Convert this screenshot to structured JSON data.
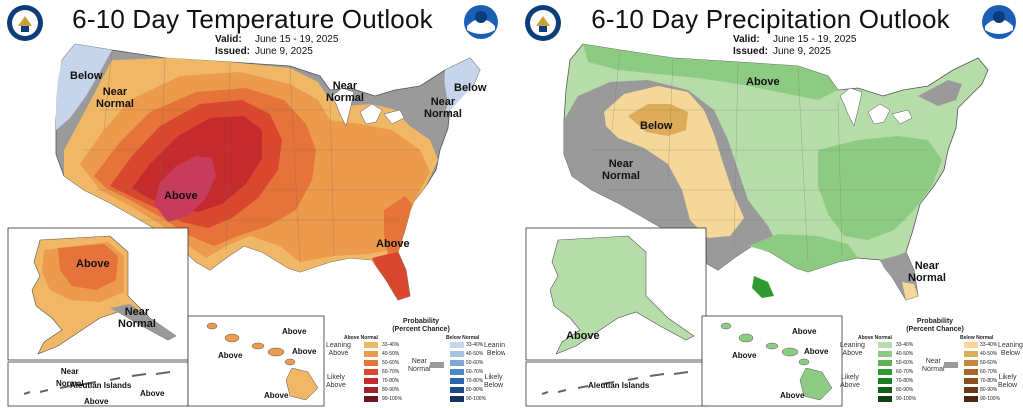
{
  "temperature": {
    "title": "6-10 Day Temperature Outlook",
    "valid_label": "Valid:",
    "valid_value": "June 15 - 19, 2025",
    "issued_label": "Issued:",
    "issued_value": "June 9, 2025",
    "labels": {
      "below_nw": "Below",
      "near_normal_nw": "Near\nNormal",
      "above_sw": "Above",
      "near_normal_gl": "Near\nNormal",
      "below_ne": "Below",
      "near_normal_ne": "Near\nNormal",
      "above_se": "Above",
      "alaska_above": "Above",
      "alaska_near": "Near\nNormal",
      "aleutian": "Aleutian Islands",
      "aleutian_near": "Near\nNormal",
      "aleutian_above_1": "Above",
      "aleutian_above_2": "Above",
      "hawaii_above_1": "Above",
      "hawaii_above_2": "Above",
      "hawaii_above_3": "Above",
      "hawaii_above_4": "Above"
    },
    "colors": {
      "a33": "#f0b766",
      "a40": "#ec9a4b",
      "a50": "#e6733a",
      "a60": "#d9482e",
      "a70": "#c52a2d",
      "a80": "#c73b5b",
      "near": "#9a9a9a",
      "b33": "#c6d4ec",
      "b40": "#a5c1e3"
    }
  },
  "precipitation": {
    "title": "6-10 Day Precipitation Outlook",
    "valid_label": "Valid:",
    "valid_value": "June 15 - 19, 2025",
    "issued_label": "Issued:",
    "issued_value": "June 9, 2025",
    "labels": {
      "above_north": "Above",
      "below_west": "Below",
      "near_normal_west": "Near\nNormal",
      "near_normal_fl": "Near\nNormal",
      "alaska_above": "Above",
      "aleutian": "Aleutian Islands",
      "hawaii_above_1": "Above",
      "hawaii_above_2": "Above",
      "hawaii_above_3": "Above",
      "hawaii_above_4": "Above"
    },
    "colors": {
      "a33": "#b6dca9",
      "a40": "#8ecb82",
      "a50": "#5db351",
      "a60": "#2f9a30",
      "near": "#9a9a9a",
      "b33": "#f5d79a",
      "b40": "#ddac58"
    }
  },
  "legend_temp": {
    "title": "Probability\n(Percent Chance)",
    "above_head": "Above Normal",
    "below_head": "Below Normal",
    "leaning_above": "Leaning\nAbove",
    "likely_above": "Likely\nAbove",
    "near_normal": "Near\nNormal",
    "leaning_below": "Leaning\nBelow",
    "likely_below": "Likely\nBelow",
    "ranges": [
      "33-40%",
      "40-50%",
      "50-60%",
      "60-70%",
      "70-80%",
      "80-90%",
      "90-100%"
    ],
    "above_colors": [
      "#f0b766",
      "#ec9a4b",
      "#e6733a",
      "#d9482e",
      "#c52a2d",
      "#a31f2a",
      "#6e1420"
    ],
    "below_colors": [
      "#c6d4ec",
      "#a5c1e3",
      "#7ea6d6",
      "#4f86c6",
      "#2a64ad",
      "#1d4b8e",
      "#123366"
    ]
  },
  "legend_precip": {
    "title": "Probability\n(Percent Chance)",
    "above_head": "Above Normal",
    "below_head": "Below Normal",
    "leaning_above": "Leaning\nAbove",
    "likely_above": "Likely\nAbove",
    "near_normal": "Near\nNormal",
    "leaning_below": "Leaning\nBelow",
    "likely_below": "Likely\nBelow",
    "ranges": [
      "33-40%",
      "40-50%",
      "50-60%",
      "60-70%",
      "70-80%",
      "80-90%",
      "90-100%"
    ],
    "above_colors": [
      "#b6dca9",
      "#8ecb82",
      "#5db351",
      "#2f9a30",
      "#1d7d24",
      "#12601b",
      "#0b4412"
    ],
    "below_colors": [
      "#f5d79a",
      "#ddac58",
      "#c8863a",
      "#a8662a",
      "#8a4e20",
      "#6c3a18",
      "#4c2810"
    ]
  }
}
